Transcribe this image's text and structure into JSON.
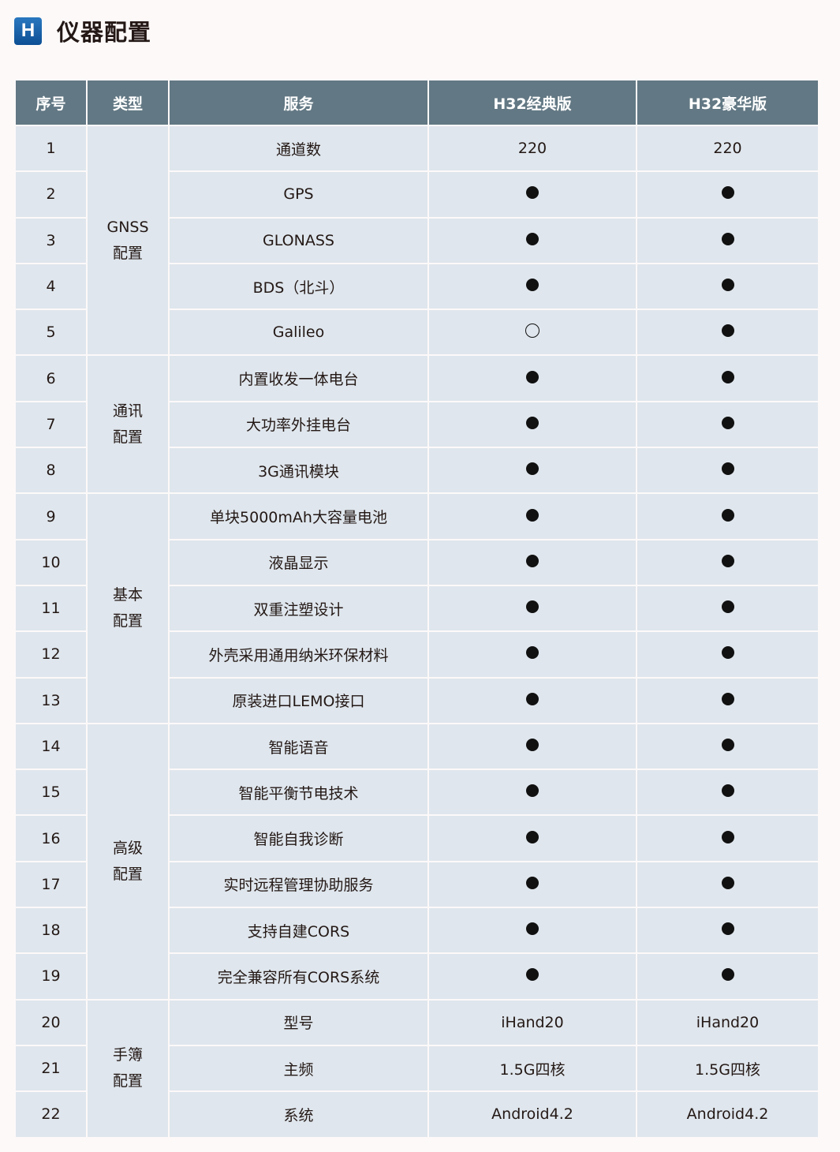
{
  "title": {
    "icon_letter": "H",
    "text": "仪器配置"
  },
  "table": {
    "headers": [
      "序号",
      "类型",
      "服务",
      "H32经典版",
      "H32豪华版"
    ],
    "groups": [
      {
        "label": "GNSS\n配置",
        "rows": [
          [
            "1",
            "通道数",
            "220",
            "220"
          ],
          [
            "2",
            "GPS",
            "filled",
            "filled"
          ],
          [
            "3",
            "GLONASS",
            "filled",
            "filled"
          ],
          [
            "4",
            "BDS（北斗）",
            "filled",
            "filled"
          ],
          [
            "5",
            "Galileo",
            "empty",
            "filled"
          ]
        ]
      },
      {
        "label": "通讯\n配置",
        "rows": [
          [
            "6",
            "内置收发一体电台",
            "filled",
            "filled"
          ],
          [
            "7",
            "大功率外挂电台",
            "filled",
            "filled"
          ],
          [
            "8",
            "3G通讯模块",
            "filled",
            "filled"
          ]
        ]
      },
      {
        "label": "基本\n配置",
        "rows": [
          [
            "9",
            "单块5000mAh大容量电池",
            "filled",
            "filled"
          ],
          [
            "10",
            "液晶显示",
            "filled",
            "filled"
          ],
          [
            "11",
            "双重注塑设计",
            "filled",
            "filled"
          ],
          [
            "12",
            "外壳采用通用纳米环保材料",
            "filled",
            "filled"
          ],
          [
            "13",
            "原装进口LEMO接口",
            "filled",
            "filled"
          ]
        ]
      },
      {
        "label": "高级\n配置",
        "rows": [
          [
            "14",
            "智能语音",
            "filled",
            "filled"
          ],
          [
            "15",
            "智能平衡节电技术",
            "filled",
            "filled"
          ],
          [
            "16",
            "智能自我诊断",
            "filled",
            "filled"
          ],
          [
            "17",
            "实时远程管理协助服务",
            "filled",
            "filled"
          ],
          [
            "18",
            "支持自建CORS",
            "filled",
            "filled"
          ],
          [
            "19",
            "完全兼容所有CORS系统",
            "filled",
            "filled"
          ]
        ]
      },
      {
        "label": "手簿\n配置",
        "rows": [
          [
            "20",
            "型号",
            "iHand20",
            "iHand20"
          ],
          [
            "21",
            "主频",
            "1.5G四核",
            "1.5G四核"
          ],
          [
            "22",
            "系统",
            "Android4.2",
            "Android4.2"
          ]
        ]
      }
    ]
  },
  "colors": {
    "header_bg": "#627884",
    "cell_bg": "#dfe6ed",
    "icon_blue": "#0d4f94"
  }
}
